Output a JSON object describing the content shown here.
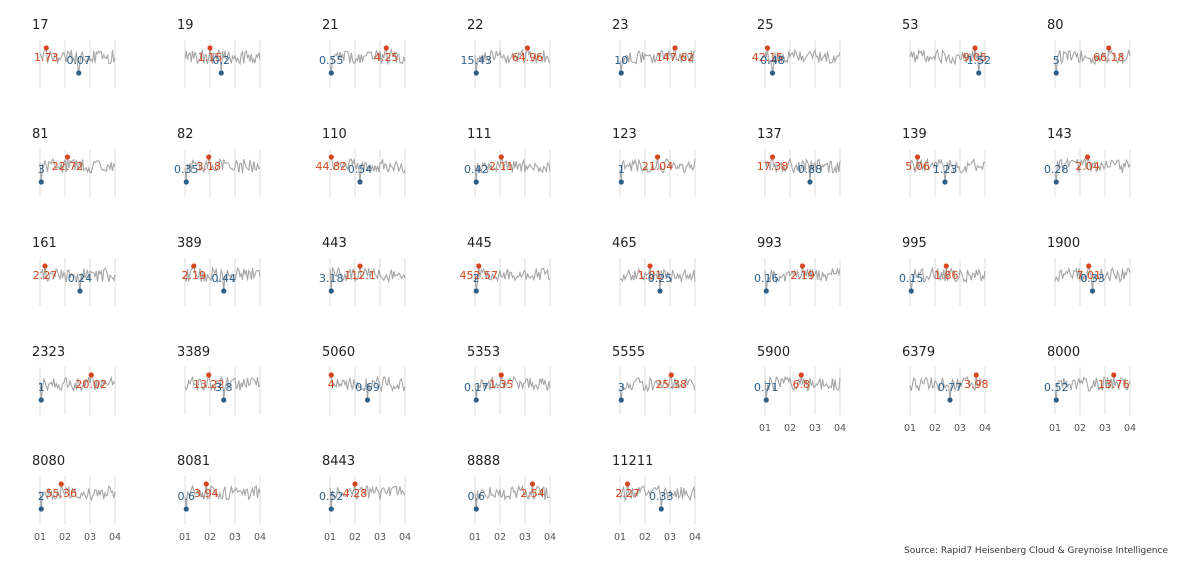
{
  "source": "Source: Rapid7 Heisenberg Cloud & Greynoise Intelligence",
  "colors": {
    "line": "#a6a6a6",
    "max": "#d4471f",
    "min": "#2a5f8a",
    "grid": "#dcdcdc",
    "band": "#ececec"
  },
  "chart_data": {
    "type": "line",
    "x_ticks": [
      "01",
      "02",
      "03",
      "04"
    ],
    "panels": [
      {
        "title": "17",
        "max": {
          "label": "1.73",
          "x": 1.25
        },
        "min": {
          "label": "0.07",
          "x": 2.55
        }
      },
      {
        "title": "19",
        "max": {
          "label": "1.15",
          "x": 2.0
        },
        "min": {
          "label": "0.2",
          "x": 2.45
        }
      },
      {
        "title": "21",
        "max": {
          "label": "4.25",
          "x": 3.25
        },
        "min": {
          "label": "0.55",
          "x": 1.05
        }
      },
      {
        "title": "22",
        "max": {
          "label": "64.96",
          "x": 3.1
        },
        "min": {
          "label": "15.43",
          "x": 1.05
        }
      },
      {
        "title": "23",
        "max": {
          "label": "147.62",
          "x": 3.2
        },
        "min": {
          "label": "10",
          "x": 1.05
        }
      },
      {
        "title": "25",
        "max": {
          "label": "42.15",
          "x": 1.1
        },
        "min": {
          "label": "0.48",
          "x": 1.3
        }
      },
      {
        "title": "53",
        "max": {
          "label": "9.05",
          "x": 3.6
        },
        "min": {
          "label": "1.52",
          "x": 3.75
        }
      },
      {
        "title": "80",
        "max": {
          "label": "66.18",
          "x": 3.15
        },
        "min": {
          "label": "5",
          "x": 1.05
        }
      },
      {
        "title": "81",
        "max": {
          "label": "22.72",
          "x": 2.1
        },
        "min": {
          "label": "3",
          "x": 1.05
        }
      },
      {
        "title": "82",
        "max": {
          "label": "3.18",
          "x": 1.95
        },
        "min": {
          "label": "0.35",
          "x": 1.05
        }
      },
      {
        "title": "110",
        "max": {
          "label": "44.82",
          "x": 1.05
        },
        "min": {
          "label": "0.54",
          "x": 2.2
        }
      },
      {
        "title": "111",
        "max": {
          "label": "2.11",
          "x": 2.05
        },
        "min": {
          "label": "0.42",
          "x": 1.05
        }
      },
      {
        "title": "123",
        "max": {
          "label": "21.04",
          "x": 2.5
        },
        "min": {
          "label": "1",
          "x": 1.05
        }
      },
      {
        "title": "137",
        "max": {
          "label": "17.38",
          "x": 1.3
        },
        "min": {
          "label": "0.88",
          "x": 2.8
        }
      },
      {
        "title": "139",
        "max": {
          "label": "5.06",
          "x": 1.3
        },
        "min": {
          "label": "1.23",
          "x": 2.4
        }
      },
      {
        "title": "143",
        "max": {
          "label": "2.04",
          "x": 2.3
        },
        "min": {
          "label": "0.28",
          "x": 1.05
        }
      },
      {
        "title": "161",
        "max": {
          "label": "2.27",
          "x": 1.2
        },
        "min": {
          "label": "0.24",
          "x": 2.6
        }
      },
      {
        "title": "389",
        "max": {
          "label": "2.19",
          "x": 1.35
        },
        "min": {
          "label": "0.44",
          "x": 2.55
        }
      },
      {
        "title": "443",
        "max": {
          "label": "112.1",
          "x": 2.2
        },
        "min": {
          "label": "3.18",
          "x": 1.05
        }
      },
      {
        "title": "445",
        "max": {
          "label": "452.57",
          "x": 1.15
        },
        "min": {
          "label": "2",
          "x": 1.05
        }
      },
      {
        "title": "465",
        "max": {
          "label": "1.81",
          "x": 2.2
        },
        "min": {
          "label": "0.25",
          "x": 2.6
        }
      },
      {
        "title": "993",
        "max": {
          "label": "2.19",
          "x": 2.5
        },
        "min": {
          "label": "0.16",
          "x": 1.05
        }
      },
      {
        "title": "995",
        "max": {
          "label": "1.86",
          "x": 2.45
        },
        "min": {
          "label": "0.15",
          "x": 1.05
        }
      },
      {
        "title": "1900",
        "max": {
          "label": "7.01",
          "x": 2.35
        },
        "min": {
          "label": "0.33",
          "x": 2.5
        }
      },
      {
        "title": "2323",
        "max": {
          "label": "20.02",
          "x": 3.05
        },
        "min": {
          "label": "1",
          "x": 1.05
        }
      },
      {
        "title": "3389",
        "max": {
          "label": "13.22",
          "x": 1.95
        },
        "min": {
          "label": "3.8",
          "x": 2.55
        }
      },
      {
        "title": "5060",
        "max": {
          "label": "4",
          "x": 1.05
        },
        "min": {
          "label": "0.69",
          "x": 2.5
        }
      },
      {
        "title": "5353",
        "max": {
          "label": "1.35",
          "x": 2.05
        },
        "min": {
          "label": "0.17",
          "x": 1.05
        }
      },
      {
        "title": "5555",
        "max": {
          "label": "25.38",
          "x": 3.05
        },
        "min": {
          "label": "3",
          "x": 1.05
        }
      },
      {
        "title": "5900",
        "max": {
          "label": "6.8",
          "x": 2.45
        },
        "min": {
          "label": "0.71",
          "x": 1.05
        },
        "show_axis": true
      },
      {
        "title": "6379",
        "max": {
          "label": "3.98",
          "x": 3.65
        },
        "min": {
          "label": "0.77",
          "x": 2.6
        },
        "show_axis": true
      },
      {
        "title": "8000",
        "max": {
          "label": "13.76",
          "x": 3.35
        },
        "min": {
          "label": "0.52",
          "x": 1.05
        },
        "show_axis": true
      },
      {
        "title": "8080",
        "max": {
          "label": "55.36",
          "x": 1.85
        },
        "min": {
          "label": "2",
          "x": 1.05
        },
        "show_axis": true
      },
      {
        "title": "8081",
        "max": {
          "label": "3.94",
          "x": 1.85
        },
        "min": {
          "label": "0.6",
          "x": 1.05
        },
        "show_axis": true
      },
      {
        "title": "8443",
        "max": {
          "label": "4.28",
          "x": 2.0
        },
        "min": {
          "label": "0.52",
          "x": 1.05
        },
        "show_axis": true
      },
      {
        "title": "8888",
        "max": {
          "label": "2.54",
          "x": 3.3
        },
        "min": {
          "label": "0.6",
          "x": 1.05
        },
        "show_axis": true
      },
      {
        "title": "11211",
        "max": {
          "label": "2.27",
          "x": 1.3
        },
        "min": {
          "label": "0.33",
          "x": 2.65
        },
        "show_axis": true
      }
    ]
  }
}
